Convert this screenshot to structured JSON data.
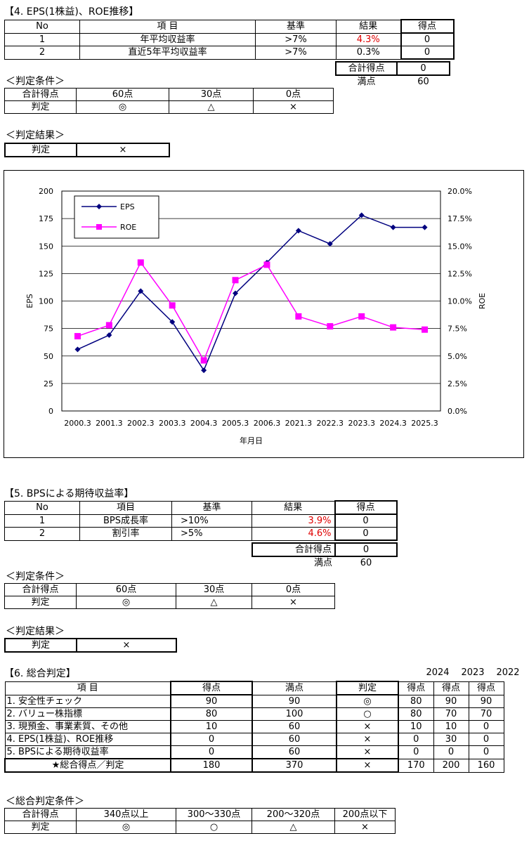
{
  "s4": {
    "title": "【4. EPS(1株益)、ROE推移】",
    "headers": [
      "No",
      "項 目",
      "基準",
      "結果",
      "得点"
    ],
    "rows": [
      {
        "no": "1",
        "item": "年平均収益率",
        "criterion": ">7%",
        "result": "4.3%",
        "score": "0"
      },
      {
        "no": "2",
        "item": "直近5年平均収益率",
        "criterion": ">7%",
        "result": "0.3%",
        "score": "0"
      }
    ],
    "total_label": "合計得点",
    "total": "0",
    "full_label": "満点",
    "full": "60",
    "cond_title": "＜判定条件＞",
    "cond": {
      "row1": [
        "合計得点",
        "60点",
        "30点",
        "0点"
      ],
      "row2": [
        "判定",
        "◎",
        "△",
        "×"
      ]
    },
    "result_title": "＜判定結果＞",
    "result": [
      "判定",
      "×"
    ]
  },
  "chart_data": {
    "type": "line",
    "categories": [
      "2000.3",
      "2001.3",
      "2002.3",
      "2003.3",
      "2004.3",
      "2005.3",
      "2006.3",
      "2021.3",
      "2022.3",
      "2023.3",
      "2024.3",
      "2025.3"
    ],
    "series": [
      {
        "name": "EPS",
        "axis": "left",
        "color": "#00007f",
        "marker": "diamond",
        "values": [
          56,
          69,
          109,
          81,
          37,
          107,
          135,
          164,
          152,
          178,
          167,
          167
        ]
      },
      {
        "name": "ROE",
        "axis": "right",
        "color": "#ff00ff",
        "marker": "square",
        "values": [
          6.8,
          7.8,
          13.5,
          9.6,
          4.6,
          11.9,
          13.3,
          8.6,
          7.7,
          8.6,
          7.6,
          7.4
        ]
      }
    ],
    "xlabel": "年月日",
    "ylabel": "EPS",
    "y2label": "ROE",
    "ylim": [
      0,
      200
    ],
    "y2lim": [
      0,
      20
    ],
    "yticks": [
      "0",
      "25",
      "50",
      "75",
      "100",
      "125",
      "150",
      "175",
      "200"
    ],
    "y2ticks": [
      "0.0%",
      "2.5%",
      "5.0%",
      "7.5%",
      "10.0%",
      "12.5%",
      "15.0%",
      "17.5%",
      "20.0%"
    ],
    "grid": true,
    "legend": "top-left"
  },
  "s5": {
    "title": "【5. BPSによる期待収益率】",
    "headers": [
      "No",
      "項目",
      "基準",
      "結果",
      "得点"
    ],
    "rows": [
      {
        "no": "1",
        "item": "BPS成長率",
        "criterion": ">10%",
        "result": "3.9%",
        "score": "0"
      },
      {
        "no": "2",
        "item": "割引率",
        "criterion": ">5%",
        "result": "4.6%",
        "score": "0"
      }
    ],
    "total_label": "合計得点",
    "total": "0",
    "full_label": "満点",
    "full": "60",
    "cond_title": "＜判定条件＞",
    "cond": {
      "row1": [
        "合計得点",
        "60点",
        "30点",
        "0点"
      ],
      "row2": [
        "判定",
        "◎",
        "△",
        "×"
      ]
    },
    "result_title": "＜判定結果＞",
    "result": [
      "判定",
      "×"
    ]
  },
  "s6": {
    "title": "【6. 総合判定】",
    "years": [
      "2024",
      "2023",
      "2022"
    ],
    "headers": [
      "項 目",
      "得点",
      "満点",
      "判定",
      "得点",
      "得点",
      "得点"
    ],
    "rows": [
      [
        "1. 安全性チェック",
        "90",
        "90",
        "◎",
        "80",
        "90",
        "90"
      ],
      [
        "2. バリュー株指標",
        "80",
        "100",
        "○",
        "80",
        "70",
        "70"
      ],
      [
        "3. 現預金、事業素質、その他",
        "10",
        "60",
        "×",
        "10",
        "10",
        "0"
      ],
      [
        "4. EPS(1株益)、ROE推移",
        "0",
        "60",
        "×",
        "0",
        "30",
        "0"
      ],
      [
        "5. BPSによる期待収益率",
        "0",
        "60",
        "×",
        "0",
        "0",
        "0"
      ]
    ],
    "total": [
      "★総合得点／判定",
      "180",
      "370",
      "×",
      "170",
      "200",
      "160"
    ],
    "cond_title": "＜総合判定条件＞",
    "cond": {
      "row1": [
        "合計得点",
        "340点以上",
        "300〜330点",
        "200〜320点",
        "200点以下"
      ],
      "row2": [
        "判定",
        "◎",
        "○",
        "△",
        "×"
      ]
    }
  }
}
